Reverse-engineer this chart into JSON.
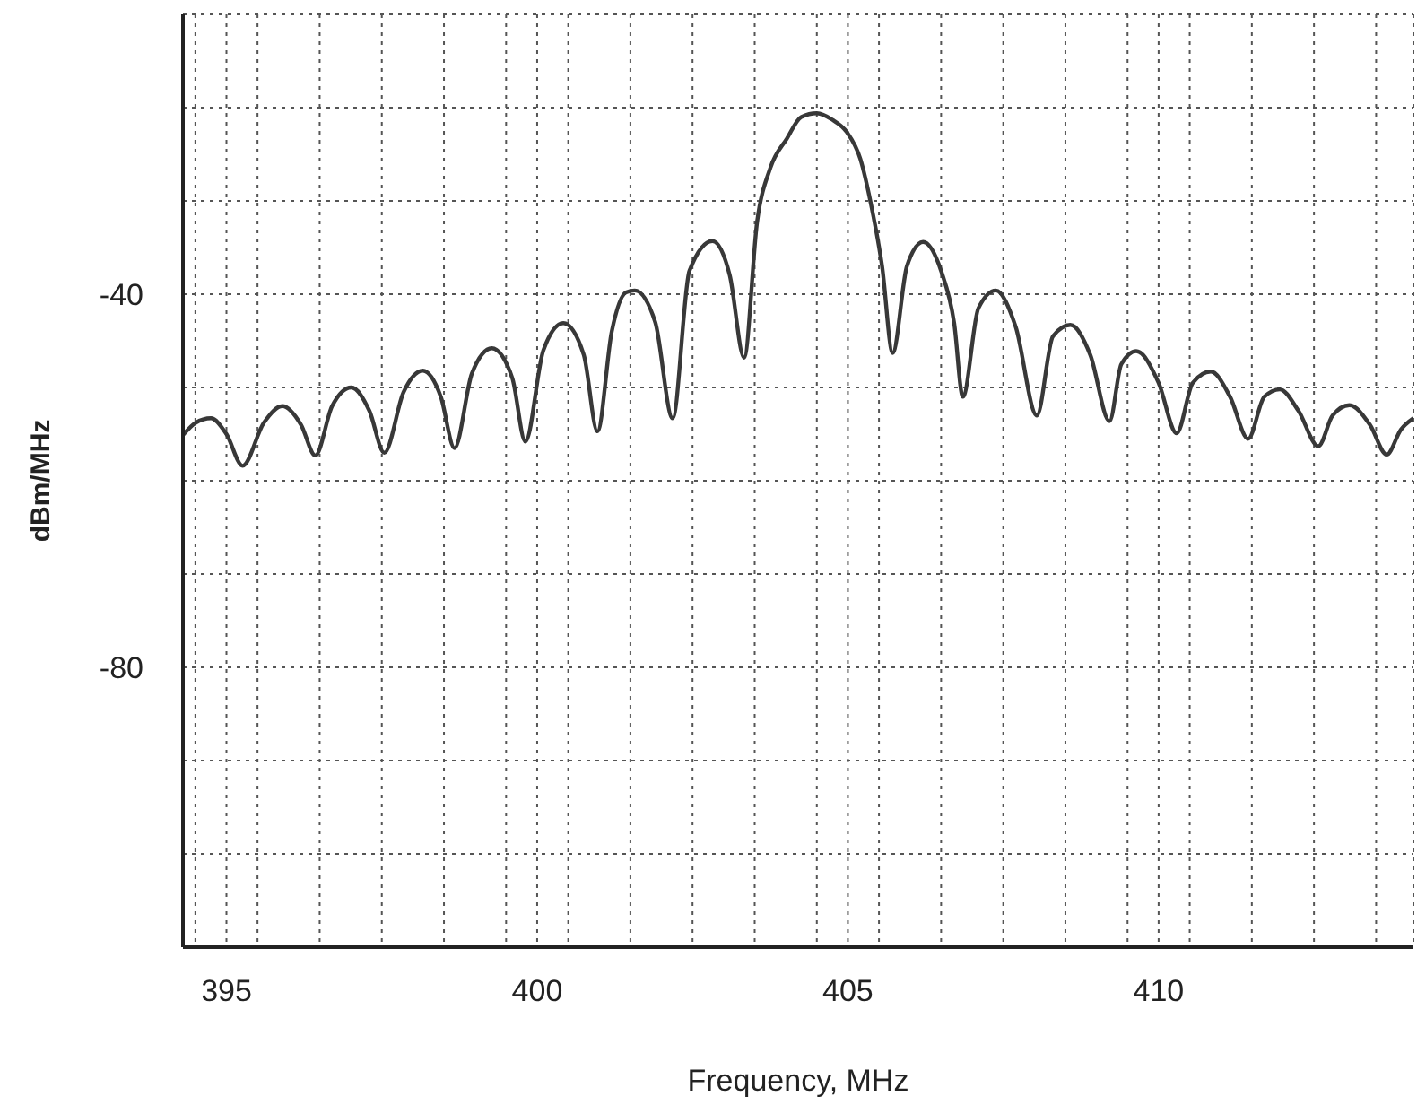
{
  "chart_data": {
    "type": "line",
    "xlabel": "Frequency, MHz",
    "ylabel": "dBm/MHz",
    "xlim": [
      394.3,
      414.1
    ],
    "ylim": [
      -110,
      -10
    ],
    "xticks": [
      {
        "value": 394.5,
        "label": null
      },
      395,
      {
        "value": 395.5,
        "label": null
      },
      {
        "value": 396.5,
        "label": null
      },
      {
        "value": 397.5,
        "label": null
      },
      {
        "value": 398.5,
        "label": null
      },
      {
        "value": 399.5,
        "label": null
      },
      400,
      {
        "value": 400.5,
        "label": null
      },
      {
        "value": 401.5,
        "label": null
      },
      {
        "value": 402.5,
        "label": null
      },
      {
        "value": 403.5,
        "label": null
      },
      {
        "value": 404.5,
        "label": null
      },
      405,
      {
        "value": 405.5,
        "label": null
      },
      {
        "value": 406.5,
        "label": null
      },
      {
        "value": 407.5,
        "label": null
      },
      {
        "value": 408.5,
        "label": null
      },
      {
        "value": 409.5,
        "label": null
      },
      410,
      {
        "value": 410.5,
        "label": null
      },
      {
        "value": 411.5,
        "label": null
      },
      {
        "value": 412.5,
        "label": null
      },
      {
        "value": 413.5,
        "label": null
      }
    ],
    "yticks": [
      {
        "value": -20,
        "label": null
      },
      {
        "value": -30,
        "label": null
      },
      -40,
      {
        "value": -50,
        "label": null
      },
      {
        "value": -60,
        "label": null
      },
      {
        "value": -70,
        "label": null
      },
      -80,
      {
        "value": -90,
        "label": null
      },
      {
        "value": -100,
        "label": null
      }
    ],
    "grid": true,
    "marker": "none",
    "line_style": "solid",
    "series": [
      {
        "color": "#383838",
        "x": [
          394.3,
          394.5,
          394.75,
          395.0,
          395.26,
          395.6,
          395.9,
          396.2,
          396.43,
          396.7,
          397.01,
          397.3,
          397.54,
          397.85,
          398.16,
          398.45,
          398.67,
          398.95,
          399.27,
          399.6,
          399.81,
          400.1,
          400.42,
          400.75,
          400.97,
          401.2,
          401.43,
          401.57,
          401.9,
          402.18,
          402.45,
          402.82,
          403.1,
          403.33,
          403.54,
          403.75,
          404.02,
          404.25,
          404.5,
          404.75,
          404.98,
          405.2,
          405.37,
          405.55,
          405.72,
          405.95,
          406.21,
          406.5,
          406.71,
          406.85,
          407.1,
          407.38,
          407.7,
          408.04,
          408.3,
          408.58,
          408.9,
          409.21,
          409.4,
          409.64,
          410.0,
          410.29,
          410.55,
          410.84,
          411.15,
          411.44,
          411.7,
          411.95,
          412.25,
          412.57,
          412.8,
          413.07,
          413.4,
          413.67,
          413.9,
          414.1
        ],
        "values": [
          -55.1,
          -53.8,
          -53.3,
          -55.0,
          -58.4,
          -53.8,
          -52.0,
          -54.0,
          -57.3,
          -52.0,
          -50.0,
          -52.5,
          -57.0,
          -50.5,
          -48.2,
          -51.0,
          -56.5,
          -48.5,
          -45.8,
          -49.0,
          -55.8,
          -46.0,
          -43.1,
          -46.5,
          -54.7,
          -44.0,
          -39.8,
          -39.6,
          -43.0,
          -53.3,
          -37.5,
          -34.3,
          -38.0,
          -46.8,
          -32.2,
          -26.5,
          -23.3,
          -21.0,
          -20.6,
          -21.3,
          -22.6,
          -25.5,
          -30.3,
          -37.0,
          -46.3,
          -37.0,
          -34.4,
          -37.5,
          -43.1,
          -51.0,
          -41.5,
          -39.6,
          -43.5,
          -53.0,
          -44.5,
          -43.3,
          -46.5,
          -53.6,
          -47.5,
          -46.1,
          -49.5,
          -54.9,
          -49.5,
          -48.3,
          -51.0,
          -55.5,
          -51.0,
          -50.2,
          -52.5,
          -56.3,
          -53.0,
          -51.9,
          -54.0,
          -57.2,
          -54.5,
          -53.3
        ]
      }
    ]
  }
}
